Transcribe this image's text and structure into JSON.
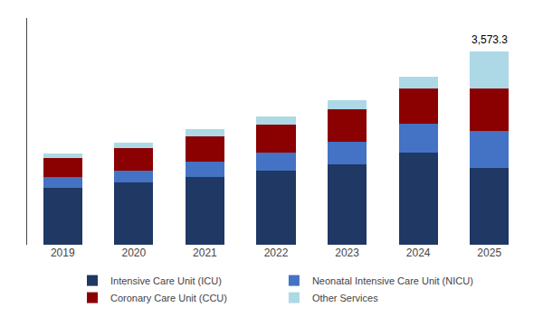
{
  "chart_data": {
    "type": "bar",
    "stacked": true,
    "categories": [
      "2019",
      "2020",
      "2021",
      "2022",
      "2023",
      "2024",
      "2025"
    ],
    "series": [
      {
        "name": "Intensive Care Unit (ICU)",
        "color": "#1f3864",
        "values": [
          1050,
          1150,
          1260,
          1370,
          1490,
          1710,
          1430
        ]
      },
      {
        "name": "Neonatal Intensive Care Unit (NICU)",
        "color": "#4472c4",
        "values": [
          200,
          230,
          275,
          340,
          420,
          530,
          680
        ]
      },
      {
        "name": "Coronary Care Unit (CCU)",
        "color": "#8b0000",
        "values": [
          360,
          415,
          480,
          520,
          600,
          650,
          790
        ]
      },
      {
        "name": "Other Services",
        "color": "#add8e6",
        "values": [
          80,
          100,
          120,
          145,
          170,
          225,
          673.3
        ]
      }
    ],
    "annotations": [
      {
        "text": "3,573.3",
        "x": "2025",
        "y": 3573.3
      }
    ],
    "ylim": [
      0,
      4200
    ],
    "yticks": [],
    "tick_labels": "x",
    "grid": false,
    "legend": "bottom"
  }
}
